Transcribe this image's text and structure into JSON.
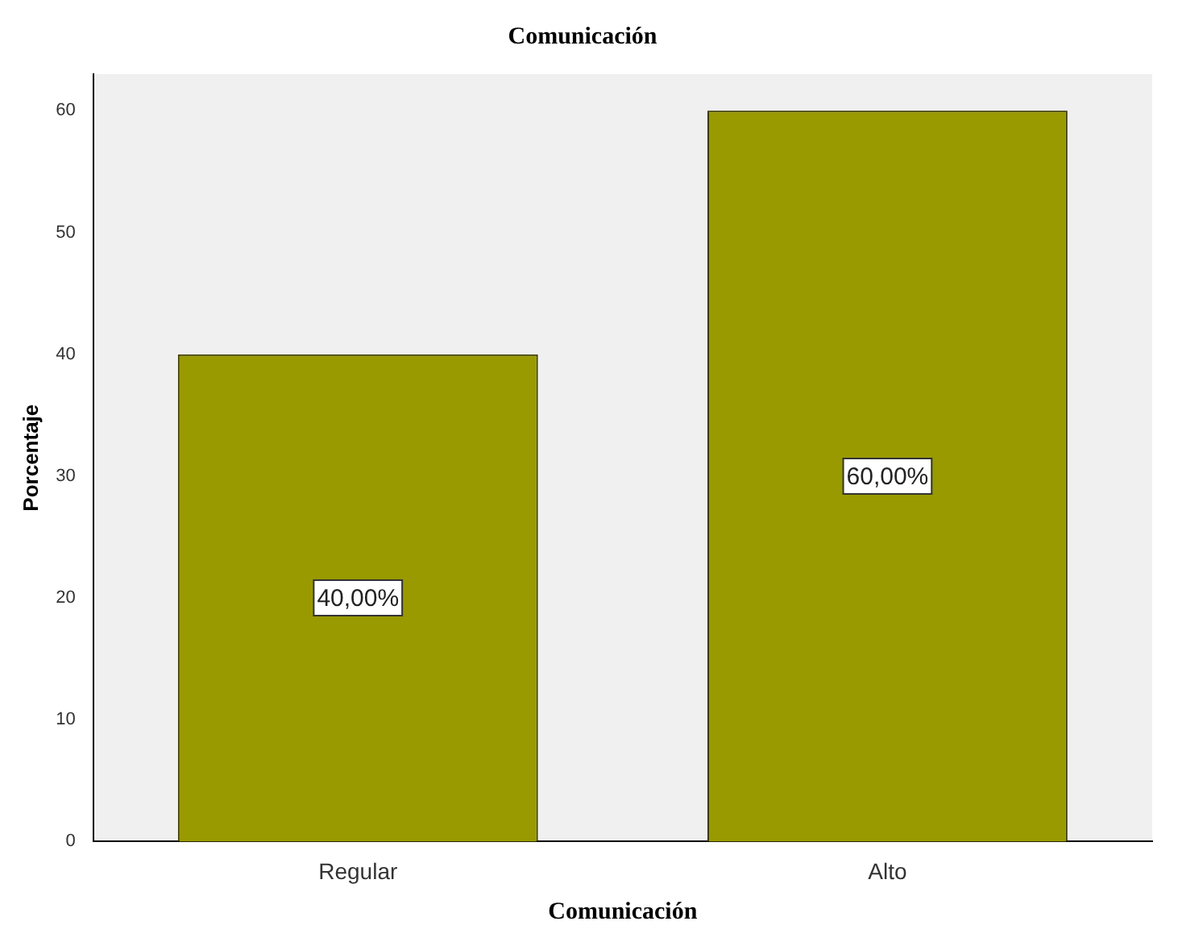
{
  "chart_data": {
    "type": "bar",
    "title": "Comunicación",
    "xlabel": "Comunicación",
    "ylabel": "Porcentaje",
    "categories": [
      "Regular",
      "Alto"
    ],
    "values": [
      40,
      60
    ],
    "value_labels": [
      "40,00%",
      "60,00%"
    ],
    "color": "#999900",
    "ylim": [
      0,
      63
    ],
    "yticks": [
      0,
      10,
      20,
      30,
      40,
      50,
      60
    ]
  }
}
